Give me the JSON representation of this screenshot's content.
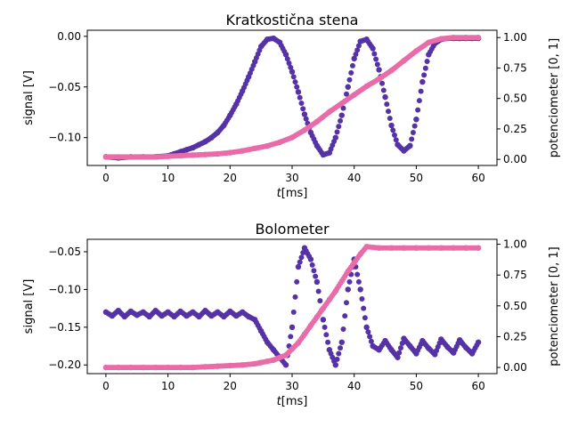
{
  "chart_data": [
    {
      "type": "scatter",
      "title": "Kratkostična stena",
      "xlabel_italic": "t",
      "xlabel_rest": "[ms]",
      "ylabel_left": "signal [V]",
      "ylabel_right": "potenciometer [0, 1]",
      "xlim": [
        -3,
        63
      ],
      "ylim_left": [
        -0.1275,
        0.006
      ],
      "ylim_right": [
        -0.05,
        1.06
      ],
      "x_ticks": [
        0,
        10,
        20,
        30,
        40,
        50,
        60
      ],
      "x_tick_labels": [
        "0",
        "10",
        "20",
        "30",
        "40",
        "50",
        "60"
      ],
      "y_left_ticks": [
        -0.1,
        -0.05,
        0.0
      ],
      "y_left_tick_labels": [
        "−0.10",
        "−0.05",
        "0.00"
      ],
      "y_right_ticks": [
        0,
        0.25,
        0.5,
        0.75,
        1.0
      ],
      "y_right_tick_labels": [
        "0.00",
        "0.25",
        "0.50",
        "0.75",
        "1.00"
      ],
      "series": [
        {
          "axis": "left",
          "color": "#5533a6",
          "x": [
            0,
            2,
            4,
            6,
            8,
            10,
            11,
            12,
            13,
            14,
            15,
            16,
            17,
            18,
            19,
            20,
            21,
            22,
            23,
            24,
            25,
            26,
            27,
            28,
            29,
            30,
            31,
            32,
            33,
            34,
            35,
            36,
            37,
            38,
            39,
            40,
            41,
            42,
            43,
            44,
            45,
            46,
            47,
            48,
            49,
            50,
            51,
            52,
            53,
            54,
            55,
            56,
            57,
            58,
            59,
            60
          ],
          "values": [
            -0.119,
            -0.12,
            -0.119,
            -0.119,
            -0.119,
            -0.118,
            -0.116,
            -0.114,
            -0.112,
            -0.11,
            -0.107,
            -0.104,
            -0.1,
            -0.095,
            -0.088,
            -0.078,
            -0.067,
            -0.054,
            -0.04,
            -0.025,
            -0.01,
            -0.003,
            -0.002,
            -0.006,
            -0.018,
            -0.035,
            -0.055,
            -0.077,
            -0.095,
            -0.108,
            -0.117,
            -0.115,
            -0.1,
            -0.078,
            -0.05,
            -0.022,
            -0.005,
            -0.003,
            -0.012,
            -0.033,
            -0.06,
            -0.088,
            -0.107,
            -0.113,
            -0.108,
            -0.082,
            -0.045,
            -0.018,
            -0.007,
            -0.003,
            -0.002,
            -0.002,
            -0.002,
            -0.002,
            -0.002,
            -0.002
          ]
        },
        {
          "axis": "right",
          "color": "#e96ba8",
          "x": [
            0,
            2,
            4,
            6,
            8,
            10,
            12,
            14,
            16,
            18,
            20,
            22,
            24,
            26,
            28,
            30,
            32,
            34,
            36,
            38,
            40,
            42,
            44,
            46,
            48,
            50,
            52,
            54,
            56,
            58,
            60
          ],
          "values": [
            0.02,
            0.02,
            0.02,
            0.02,
            0.02,
            0.025,
            0.03,
            0.035,
            0.04,
            0.045,
            0.055,
            0.07,
            0.09,
            0.11,
            0.14,
            0.18,
            0.24,
            0.31,
            0.39,
            0.46,
            0.53,
            0.6,
            0.66,
            0.73,
            0.81,
            0.89,
            0.96,
            0.99,
            1.0,
            1.0,
            1.0
          ]
        }
      ]
    },
    {
      "type": "scatter",
      "title": "Bolometer",
      "xlabel_italic": "t",
      "xlabel_rest": "[ms]",
      "ylabel_left": "signal [V]",
      "ylabel_right": "potenciometer [0, 1]",
      "xlim": [
        -3,
        63
      ],
      "ylim_left": [
        -0.2115,
        -0.0335
      ],
      "ylim_right": [
        -0.05,
        1.04
      ],
      "x_ticks": [
        0,
        10,
        20,
        30,
        40,
        50,
        60
      ],
      "x_tick_labels": [
        "0",
        "10",
        "20",
        "30",
        "40",
        "50",
        "60"
      ],
      "y_left_ticks": [
        -0.2,
        -0.15,
        -0.1,
        -0.05
      ],
      "y_left_tick_labels": [
        "−0.20",
        "−0.15",
        "−0.10",
        "−0.05"
      ],
      "y_right_ticks": [
        0,
        0.25,
        0.5,
        0.75,
        1.0
      ],
      "y_right_tick_labels": [
        "0.00",
        "0.25",
        "0.50",
        "0.75",
        "1.00"
      ],
      "series": [
        {
          "axis": "left",
          "color": "#5533a6",
          "x": [
            0,
            1,
            2,
            3,
            4,
            5,
            6,
            7,
            8,
            9,
            10,
            11,
            12,
            13,
            14,
            15,
            16,
            17,
            18,
            19,
            20,
            21,
            22,
            23,
            24,
            25,
            26,
            27,
            28,
            29,
            30,
            31,
            32,
            33,
            34,
            35,
            36,
            37,
            38,
            39,
            40,
            41,
            42,
            43,
            44,
            45,
            46,
            47,
            48,
            49,
            50,
            51,
            52,
            53,
            54,
            55,
            56,
            57,
            58,
            59,
            60
          ],
          "values": [
            -0.13,
            -0.135,
            -0.128,
            -0.136,
            -0.129,
            -0.134,
            -0.13,
            -0.136,
            -0.128,
            -0.135,
            -0.13,
            -0.136,
            -0.129,
            -0.135,
            -0.13,
            -0.136,
            -0.128,
            -0.135,
            -0.13,
            -0.136,
            -0.129,
            -0.135,
            -0.13,
            -0.136,
            -0.14,
            -0.155,
            -0.17,
            -0.18,
            -0.19,
            -0.2,
            -0.15,
            -0.07,
            -0.045,
            -0.06,
            -0.09,
            -0.14,
            -0.18,
            -0.2,
            -0.17,
            -0.1,
            -0.06,
            -0.1,
            -0.15,
            -0.175,
            -0.18,
            -0.168,
            -0.18,
            -0.19,
            -0.165,
            -0.175,
            -0.185,
            -0.168,
            -0.178,
            -0.186,
            -0.166,
            -0.176,
            -0.184,
            -0.167,
            -0.177,
            -0.185,
            -0.17
          ]
        },
        {
          "axis": "right",
          "color": "#e96ba8",
          "x": [
            0,
            2,
            4,
            6,
            8,
            10,
            12,
            14,
            16,
            18,
            20,
            22,
            24,
            25,
            26,
            27,
            28,
            29,
            30,
            31,
            32,
            33,
            34,
            35,
            36,
            37,
            38,
            39,
            40,
            41,
            42,
            44,
            46,
            48,
            50,
            52,
            54,
            56,
            58,
            60
          ],
          "values": [
            0.0,
            0.0,
            0.0,
            0.0,
            0.0,
            0.0,
            0.0,
            0.0,
            0.005,
            0.01,
            0.015,
            0.02,
            0.03,
            0.04,
            0.05,
            0.06,
            0.08,
            0.1,
            0.15,
            0.2,
            0.27,
            0.34,
            0.41,
            0.48,
            0.55,
            0.62,
            0.7,
            0.78,
            0.85,
            0.92,
            0.98,
            0.97,
            0.97,
            0.97,
            0.97,
            0.97,
            0.97,
            0.97,
            0.97,
            0.97
          ]
        }
      ]
    }
  ]
}
